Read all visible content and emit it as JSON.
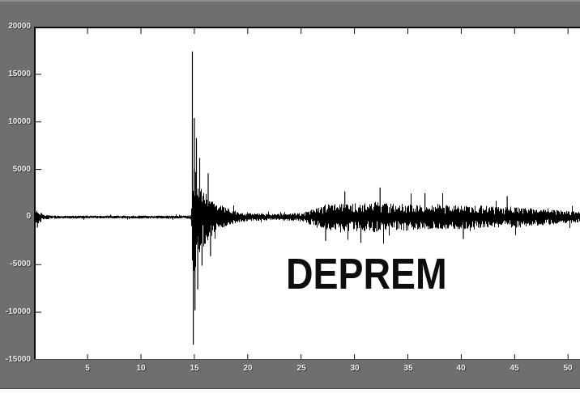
{
  "figure": {
    "annotation": "DEPREM",
    "colors": {
      "background": "#6f6f6f",
      "plot_background": "#ffffff",
      "waveform": "#000000",
      "axis_line": "#0a0a0a",
      "bottom_axis_line": "#4a4a4a",
      "tick_label": "#ececec",
      "annotation_text": "#0d0d0d"
    }
  },
  "chart_data": {
    "type": "line",
    "title": "",
    "subtitle": "",
    "xlabel": "",
    "ylabel": "",
    "annotation": "DEPREM",
    "legend": null,
    "grid": false,
    "xlim": [
      0,
      51.1
    ],
    "ylim": [
      -15000,
      20000
    ],
    "x_ticks": [
      5,
      10,
      15,
      20,
      25,
      30,
      35,
      40,
      45,
      50
    ],
    "y_ticks": [
      20000,
      15000,
      10000,
      5000,
      0,
      -5000,
      -10000,
      -15000
    ],
    "series_name": "seismogram-amplitude",
    "description": "Seismogram: quiet noise near 0 until t=14.7, large earthquake onset spike at t=15 peaking near +17400 and -13400, exponential coda decay until t=19, quiet until t=25, then sustained secondary tremor noise of roughly +/-1500 until t=51",
    "baseline": 0,
    "seed": 7,
    "envelope": [
      [
        0,
        500
      ],
      [
        0.25,
        780
      ],
      [
        0.5,
        560
      ],
      [
        0.9,
        260
      ],
      [
        1.5,
        170
      ],
      [
        5,
        150
      ],
      [
        10,
        160
      ],
      [
        13,
        150
      ],
      [
        14.55,
        180
      ],
      [
        14.68,
        400
      ],
      [
        14.75,
        3200
      ],
      [
        14.8,
        6500
      ],
      [
        15.0,
        6500
      ],
      [
        15.2,
        5200
      ],
      [
        15.5,
        3800
      ],
      [
        16.0,
        2800
      ],
      [
        16.5,
        2100
      ],
      [
        17.0,
        1600
      ],
      [
        17.5,
        1250
      ],
      [
        18.0,
        1000
      ],
      [
        18.5,
        780
      ],
      [
        19.0,
        600
      ],
      [
        20,
        450
      ],
      [
        21,
        390
      ],
      [
        22,
        360
      ],
      [
        23,
        360
      ],
      [
        24,
        390
      ],
      [
        25,
        470
      ],
      [
        25.5,
        620
      ],
      [
        26,
        900
      ],
      [
        26.5,
        1150
      ],
      [
        27,
        1350
      ],
      [
        28,
        1450
      ],
      [
        29,
        1500
      ],
      [
        30,
        1450
      ],
      [
        31,
        1550
      ],
      [
        32,
        1600
      ],
      [
        33,
        1500
      ],
      [
        34,
        1350
      ],
      [
        35,
        1450
      ],
      [
        36,
        1300
      ],
      [
        37,
        1250
      ],
      [
        38,
        1350
      ],
      [
        39,
        1250
      ],
      [
        40,
        1300
      ],
      [
        41,
        1150
      ],
      [
        42,
        1250
      ],
      [
        43,
        1150
      ],
      [
        44,
        1050
      ],
      [
        45,
        1150
      ],
      [
        46,
        1000
      ],
      [
        47,
        950
      ],
      [
        48,
        850
      ],
      [
        49,
        750
      ],
      [
        50,
        650
      ],
      [
        51.1,
        550
      ]
    ],
    "spikes": [
      [
        0.3,
        -1100
      ],
      [
        14.82,
        17400
      ],
      [
        14.9,
        -13400
      ],
      [
        15.0,
        10400
      ],
      [
        15.06,
        -9800
      ],
      [
        15.2,
        8300
      ],
      [
        15.32,
        -7600
      ],
      [
        15.5,
        6200
      ],
      [
        15.72,
        -5100
      ],
      [
        16.3,
        4600
      ],
      [
        16.52,
        -4100
      ],
      [
        27.3,
        -2500
      ],
      [
        29.1,
        2700
      ],
      [
        30.6,
        -2700
      ],
      [
        32.4,
        3100
      ],
      [
        36.6,
        2500
      ],
      [
        40.2,
        -2300
      ],
      [
        44.3,
        2200
      ]
    ]
  }
}
